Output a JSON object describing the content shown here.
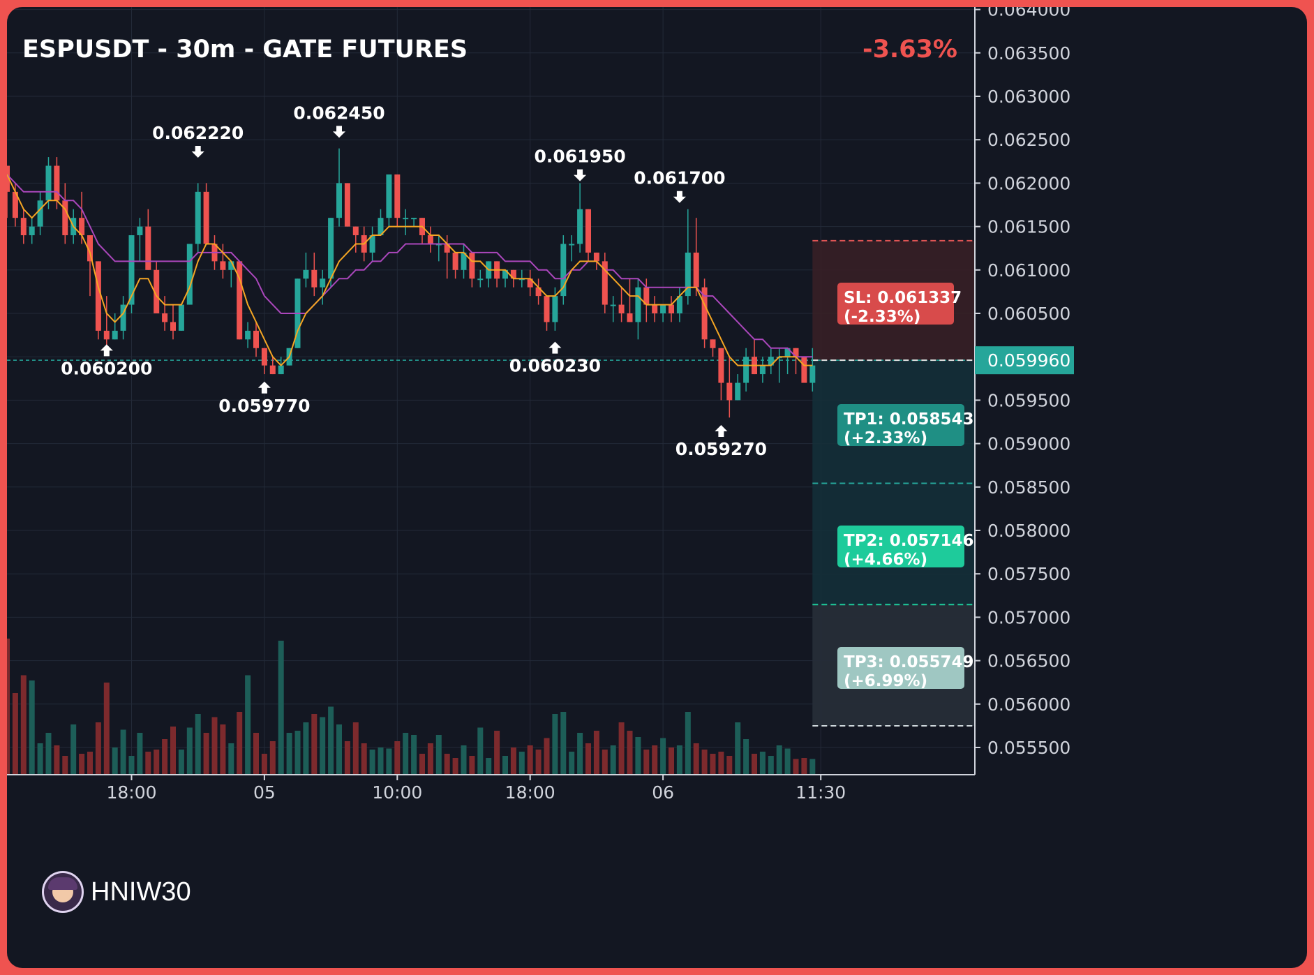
{
  "header": {
    "title": "ESPUSDT - 30m - GATE FUTURES",
    "change": "-3.63%"
  },
  "watermark": {
    "user": "HNIW30",
    "icon": "avatar-icon"
  },
  "price_axis": {
    "ticks": [
      "0.064000",
      "0.063500",
      "0.063000",
      "0.062500",
      "0.062000",
      "0.061500",
      "0.061000",
      "0.060500",
      "0.059500",
      "0.059000",
      "0.058500",
      "0.058000",
      "0.057500",
      "0.057000",
      "0.056500",
      "0.056000",
      "0.055500"
    ],
    "current_label": "0.059960"
  },
  "time_axis": {
    "labels": [
      "18:00",
      "05",
      "10:00",
      "18:00",
      "06",
      "11:30"
    ]
  },
  "annotations": {
    "highs": [
      "0.062220",
      "0.062450",
      "0.061950",
      "0.061700"
    ],
    "lows": [
      "0.060200",
      "0.059770",
      "0.060230",
      "0.059270"
    ]
  },
  "trade": {
    "sl": {
      "line1": "SL: 0.061337",
      "line2": "(-2.33%)"
    },
    "tp1": {
      "line1": "TP1: 0.058543",
      "line2": "(+2.33%)"
    },
    "tp2": {
      "line1": "TP2: 0.057146",
      "line2": "(+4.66%)"
    },
    "tp3": {
      "line1": "TP3: 0.055749",
      "line2": "(+6.99%)"
    }
  },
  "colors": {
    "background": "#131722",
    "frame": "#ef5350",
    "up": "#26a69a",
    "down": "#ef5350",
    "ma_fast": "#f5a623",
    "ma_slow": "#ab47bc",
    "sl_box": "#d84b4b",
    "tp1_box": "#1f8f84",
    "tp2_box": "#1ecb9b",
    "tp3_box": "#9fc7c2"
  },
  "chart_data": {
    "type": "candlestick",
    "title": "ESPUSDT - 30m - GATE FUTURES",
    "interval": "30m",
    "ylim": [
      0.0552,
      0.0642
    ],
    "y_ticks": [
      0.064,
      0.0635,
      0.063,
      0.0625,
      0.062,
      0.0615,
      0.061,
      0.0605,
      0.06,
      0.0595,
      0.059,
      0.0585,
      0.058,
      0.0575,
      0.057,
      0.0565,
      0.056,
      0.0555
    ],
    "x_tick_labels": [
      "18:00",
      "05",
      "10:00",
      "18:00",
      "06",
      "11:30"
    ],
    "x_tick_candles": [
      15,
      31,
      47,
      63,
      79,
      98
    ],
    "current_price": 0.05996,
    "change_pct": -3.63,
    "candles": [
      [
        0.0622,
        0.0622,
        0.0616,
        0.0619
      ],
      [
        0.0619,
        0.062,
        0.0615,
        0.0616
      ],
      [
        0.0616,
        0.0617,
        0.0613,
        0.0614
      ],
      [
        0.0614,
        0.0616,
        0.0613,
        0.0615
      ],
      [
        0.0615,
        0.0619,
        0.0614,
        0.0618
      ],
      [
        0.0618,
        0.0623,
        0.0617,
        0.0622
      ],
      [
        0.0622,
        0.0623,
        0.0617,
        0.0618
      ],
      [
        0.0618,
        0.062,
        0.0613,
        0.0614
      ],
      [
        0.0614,
        0.0617,
        0.0613,
        0.0616
      ],
      [
        0.0616,
        0.0619,
        0.0613,
        0.0614
      ],
      [
        0.0614,
        0.0614,
        0.0607,
        0.0611
      ],
      [
        0.0611,
        0.0611,
        0.0602,
        0.0603
      ],
      [
        0.0603,
        0.0607,
        0.0601,
        0.0602
      ],
      [
        0.0602,
        0.0605,
        0.0602,
        0.0603
      ],
      [
        0.0603,
        0.0607,
        0.0602,
        0.0606
      ],
      [
        0.0606,
        0.0614,
        0.0605,
        0.0614
      ],
      [
        0.0614,
        0.0616,
        0.0611,
        0.0615
      ],
      [
        0.0615,
        0.0617,
        0.061,
        0.061
      ],
      [
        0.061,
        0.0611,
        0.0605,
        0.0605
      ],
      [
        0.0605,
        0.0607,
        0.0603,
        0.0604
      ],
      [
        0.0604,
        0.0606,
        0.0602,
        0.0603
      ],
      [
        0.0603,
        0.0606,
        0.0603,
        0.0606
      ],
      [
        0.0606,
        0.0613,
        0.0606,
        0.0613
      ],
      [
        0.0613,
        0.062,
        0.0612,
        0.0619
      ],
      [
        0.0619,
        0.062,
        0.0613,
        0.0613
      ],
      [
        0.0613,
        0.0614,
        0.061,
        0.0611
      ],
      [
        0.0611,
        0.0613,
        0.0609,
        0.061
      ],
      [
        0.061,
        0.0611,
        0.0608,
        0.0611
      ],
      [
        0.0611,
        0.0611,
        0.0602,
        0.0602
      ],
      [
        0.0602,
        0.0604,
        0.0601,
        0.0603
      ],
      [
        0.0603,
        0.0604,
        0.06,
        0.0601
      ],
      [
        0.0601,
        0.0601,
        0.0598,
        0.0599
      ],
      [
        0.0599,
        0.06,
        0.0598,
        0.0598
      ],
      [
        0.0598,
        0.06,
        0.0598,
        0.0599
      ],
      [
        0.0599,
        0.0601,
        0.0599,
        0.0601
      ],
      [
        0.0601,
        0.0609,
        0.0601,
        0.0609
      ],
      [
        0.0609,
        0.0612,
        0.0608,
        0.061
      ],
      [
        0.061,
        0.0612,
        0.0607,
        0.0608
      ],
      [
        0.0608,
        0.061,
        0.0606,
        0.0609
      ],
      [
        0.0609,
        0.0616,
        0.0608,
        0.0616
      ],
      [
        0.0616,
        0.0624,
        0.0615,
        0.062
      ],
      [
        0.062,
        0.062,
        0.0615,
        0.0615
      ],
      [
        0.0615,
        0.0615,
        0.0612,
        0.0614
      ],
      [
        0.0614,
        0.0615,
        0.0611,
        0.0612
      ],
      [
        0.0612,
        0.0615,
        0.0611,
        0.0614
      ],
      [
        0.0614,
        0.0617,
        0.0614,
        0.0616
      ],
      [
        0.0616,
        0.0621,
        0.0615,
        0.0621
      ],
      [
        0.0621,
        0.0621,
        0.0615,
        0.0616
      ],
      [
        0.0616,
        0.0617,
        0.0614,
        0.0616
      ],
      [
        0.0616,
        0.0616,
        0.0615,
        0.0616
      ],
      [
        0.0616,
        0.0616,
        0.0613,
        0.0614
      ],
      [
        0.0614,
        0.0615,
        0.0612,
        0.0613
      ],
      [
        0.0613,
        0.0614,
        0.0611,
        0.0613
      ],
      [
        0.0613,
        0.0614,
        0.0609,
        0.0612
      ],
      [
        0.0612,
        0.0612,
        0.0609,
        0.061
      ],
      [
        0.061,
        0.0613,
        0.0609,
        0.0612
      ],
      [
        0.0612,
        0.0612,
        0.0608,
        0.0609
      ],
      [
        0.0609,
        0.061,
        0.0608,
        0.0609
      ],
      [
        0.0609,
        0.0611,
        0.0608,
        0.0611
      ],
      [
        0.0611,
        0.0611,
        0.0608,
        0.0609
      ],
      [
        0.0609,
        0.061,
        0.0608,
        0.061
      ],
      [
        0.061,
        0.061,
        0.0608,
        0.0609
      ],
      [
        0.0609,
        0.061,
        0.0608,
        0.0609
      ],
      [
        0.0609,
        0.061,
        0.0607,
        0.0608
      ],
      [
        0.0608,
        0.0609,
        0.0606,
        0.0607
      ],
      [
        0.0607,
        0.0607,
        0.0603,
        0.0604
      ],
      [
        0.0604,
        0.0608,
        0.0603,
        0.0607
      ],
      [
        0.0607,
        0.0614,
        0.0606,
        0.0613
      ],
      [
        0.0613,
        0.0614,
        0.0611,
        0.0613
      ],
      [
        0.0613,
        0.062,
        0.0612,
        0.0617
      ],
      [
        0.0617,
        0.0617,
        0.0611,
        0.0612
      ],
      [
        0.0612,
        0.0612,
        0.061,
        0.0611
      ],
      [
        0.0611,
        0.0612,
        0.0605,
        0.0606
      ],
      [
        0.0606,
        0.0607,
        0.0604,
        0.0606
      ],
      [
        0.0606,
        0.0608,
        0.0604,
        0.0605
      ],
      [
        0.0605,
        0.0609,
        0.0604,
        0.0604
      ],
      [
        0.0604,
        0.0609,
        0.0602,
        0.0608
      ],
      [
        0.0608,
        0.0609,
        0.0604,
        0.0606
      ],
      [
        0.0606,
        0.0607,
        0.0604,
        0.0605
      ],
      [
        0.0605,
        0.0606,
        0.0604,
        0.0606
      ],
      [
        0.0606,
        0.0607,
        0.0604,
        0.0605
      ],
      [
        0.0605,
        0.0608,
        0.0604,
        0.0607
      ],
      [
        0.0607,
        0.0617,
        0.0606,
        0.0612
      ],
      [
        0.0612,
        0.0616,
        0.0607,
        0.0608
      ],
      [
        0.0608,
        0.0609,
        0.0601,
        0.0602
      ],
      [
        0.0602,
        0.0602,
        0.06,
        0.0601
      ],
      [
        0.0601,
        0.0601,
        0.0595,
        0.0597
      ],
      [
        0.0597,
        0.06,
        0.0593,
        0.0595
      ],
      [
        0.0595,
        0.0598,
        0.0595,
        0.0597
      ],
      [
        0.0597,
        0.0601,
        0.0596,
        0.06
      ],
      [
        0.06,
        0.0602,
        0.0598,
        0.0598
      ],
      [
        0.0598,
        0.06,
        0.0597,
        0.0599
      ],
      [
        0.0599,
        0.0601,
        0.0598,
        0.06
      ],
      [
        0.06,
        0.0601,
        0.0597,
        0.06
      ],
      [
        0.06,
        0.0601,
        0.0598,
        0.0601
      ],
      [
        0.0601,
        0.0601,
        0.0598,
        0.06
      ],
      [
        0.06,
        0.06,
        0.0597,
        0.0597
      ],
      [
        0.0597,
        0.0601,
        0.0596,
        0.0599
      ]
    ],
    "volumes": [
      130,
      78,
      95,
      90,
      30,
      40,
      28,
      18,
      48,
      20,
      22,
      50,
      88,
      26,
      43,
      18,
      40,
      22,
      24,
      34,
      46,
      24,
      45,
      58,
      40,
      55,
      48,
      30,
      60,
      95,
      40,
      20,
      32,
      128,
      40,
      42,
      50,
      58,
      55,
      65,
      48,
      32,
      50,
      30,
      24,
      26,
      25,
      32,
      40,
      38,
      20,
      30,
      38,
      20,
      16,
      28,
      18,
      45,
      16,
      42,
      18,
      26,
      22,
      28,
      24,
      35,
      58,
      60,
      22,
      40,
      30,
      42,
      24,
      28,
      50,
      42,
      36,
      24,
      28,
      35,
      26,
      28,
      60,
      30,
      24,
      20,
      22,
      18,
      50,
      34,
      20,
      22,
      18,
      28,
      25,
      15,
      16,
      15
    ],
    "ma_fast": [
      0.0621,
      0.0619,
      0.0617,
      0.0616,
      0.0617,
      0.0618,
      0.0618,
      0.0617,
      0.0615,
      0.0614,
      0.0612,
      0.0608,
      0.0605,
      0.0604,
      0.0605,
      0.0607,
      0.0609,
      0.0609,
      0.0607,
      0.0606,
      0.0606,
      0.0606,
      0.0608,
      0.0611,
      0.0613,
      0.0613,
      0.0612,
      0.0611,
      0.0609,
      0.0606,
      0.0604,
      0.0602,
      0.06,
      0.0599,
      0.06,
      0.0603,
      0.0605,
      0.0606,
      0.0607,
      0.0609,
      0.0611,
      0.0612,
      0.0613,
      0.0613,
      0.0614,
      0.0614,
      0.0615,
      0.0615,
      0.0615,
      0.0615,
      0.0615,
      0.0614,
      0.0614,
      0.0613,
      0.0612,
      0.0612,
      0.0611,
      0.0611,
      0.061,
      0.061,
      0.061,
      0.0609,
      0.0609,
      0.0609,
      0.0608,
      0.0607,
      0.0607,
      0.0608,
      0.061,
      0.0611,
      0.0611,
      0.0611,
      0.061,
      0.0609,
      0.0608,
      0.0607,
      0.0607,
      0.0606,
      0.0606,
      0.0606,
      0.0606,
      0.0607,
      0.0608,
      0.0608,
      0.0606,
      0.0604,
      0.0602,
      0.06,
      0.0599,
      0.0599,
      0.0599,
      0.0599,
      0.0599,
      0.06,
      0.06,
      0.06,
      0.0599,
      0.0599
    ],
    "ma_slow": [
      0.0621,
      0.062,
      0.0619,
      0.0619,
      0.0619,
      0.0619,
      0.0619,
      0.0618,
      0.0618,
      0.0617,
      0.0615,
      0.0613,
      0.0612,
      0.0611,
      0.0611,
      0.0611,
      0.0611,
      0.0611,
      0.0611,
      0.0611,
      0.0611,
      0.0611,
      0.0611,
      0.0612,
      0.0612,
      0.0612,
      0.0612,
      0.0612,
      0.0611,
      0.061,
      0.0609,
      0.0607,
      0.0606,
      0.0605,
      0.0605,
      0.0605,
      0.0605,
      0.0606,
      0.0607,
      0.0608,
      0.0609,
      0.0609,
      0.061,
      0.061,
      0.0611,
      0.0611,
      0.0612,
      0.0612,
      0.0613,
      0.0613,
      0.0613,
      0.0613,
      0.0613,
      0.0613,
      0.0613,
      0.0613,
      0.0612,
      0.0612,
      0.0612,
      0.0612,
      0.0611,
      0.0611,
      0.0611,
      0.0611,
      0.061,
      0.061,
      0.0609,
      0.0609,
      0.061,
      0.061,
      0.0611,
      0.0611,
      0.061,
      0.061,
      0.0609,
      0.0609,
      0.0609,
      0.0608,
      0.0608,
      0.0608,
      0.0608,
      0.0608,
      0.0608,
      0.0608,
      0.0607,
      0.0607,
      0.0606,
      0.0605,
      0.0604,
      0.0603,
      0.0602,
      0.0602,
      0.0601,
      0.0601,
      0.0601,
      0.06,
      0.06,
      0.06
    ],
    "high_markers": [
      {
        "i": 23,
        "price": 0.06222
      },
      {
        "i": 40,
        "price": 0.06245
      },
      {
        "i": 69,
        "price": 0.06195
      },
      {
        "i": 81,
        "price": 0.0617
      }
    ],
    "low_markers": [
      {
        "i": 12,
        "price": 0.0602
      },
      {
        "i": 31,
        "price": 0.05977
      },
      {
        "i": 66,
        "price": 0.06023
      },
      {
        "i": 86,
        "price": 0.05927
      }
    ],
    "levels": {
      "sl": 0.061337,
      "entry": 0.05996,
      "tp1": 0.058543,
      "tp2": 0.057146,
      "tp3": 0.055749
    },
    "xlabel": "",
    "ylabel": ""
  }
}
